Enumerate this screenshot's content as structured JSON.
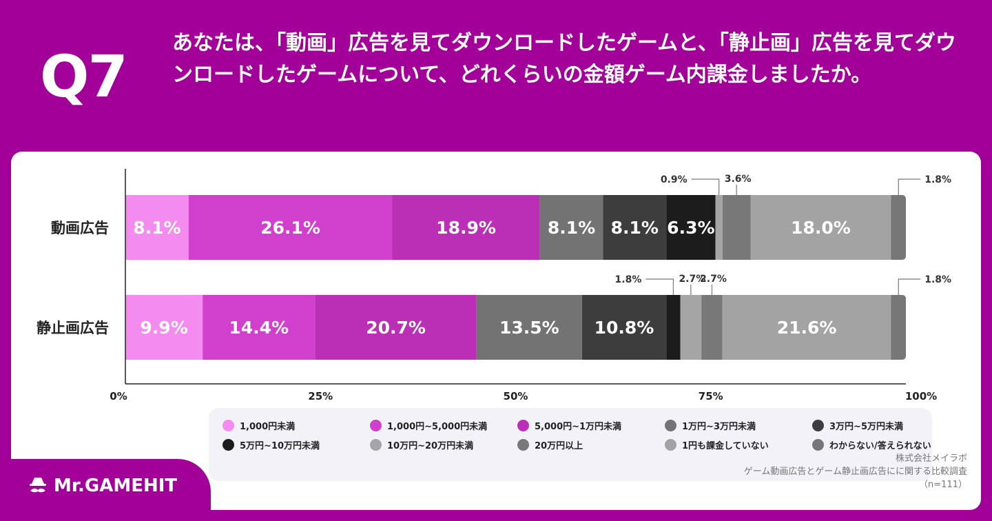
{
  "header": {
    "q_label": "Q7",
    "question": "あなたは、「動画」広告を見てダウンロードしたゲームと、「静止画」広告を見てダウンロードしたゲームについて、どれくらいの金額ゲーム内課金しましたか。"
  },
  "chart_data": {
    "type": "bar",
    "orientation": "horizontal-stacked-100",
    "categories": [
      "動画広告",
      "静止画広告"
    ],
    "x_ticks": [
      "0%",
      "25%",
      "50%",
      "75%",
      "100%"
    ],
    "xlim": [
      0,
      100
    ],
    "series": [
      {
        "name": "1,000円未満",
        "color": "#f48cf0",
        "values": [
          8.1,
          9.9
        ],
        "labels": [
          "8.1%",
          "9.9%"
        ]
      },
      {
        "name": "1,000円~5,000円未満",
        "color": "#d040cc",
        "values": [
          26.1,
          14.4
        ],
        "labels": [
          "26.1%",
          "14.4%"
        ]
      },
      {
        "name": "5,000円~1万円未満",
        "color": "#bb2fb6",
        "values": [
          18.9,
          20.7
        ],
        "labels": [
          "18.9%",
          "20.7%"
        ]
      },
      {
        "name": "1万円~3万円未満",
        "color": "#737373",
        "values": [
          8.1,
          13.5
        ],
        "labels": [
          "8.1%",
          "13.5%"
        ]
      },
      {
        "name": "3万円~5万円未満",
        "color": "#3d3d3d",
        "values": [
          8.1,
          10.8
        ],
        "labels": [
          "8.1%",
          "10.8%"
        ]
      },
      {
        "name": "5万円~10万円未満",
        "color": "#1c1c1c",
        "values": [
          6.3,
          1.8
        ],
        "labels": [
          "6.3%",
          "1.8%"
        ]
      },
      {
        "name": "10万円~20万円未満",
        "color": "#a5a5a5",
        "values": [
          0.9,
          2.7
        ],
        "labels": [
          "0.9%",
          "2.7%"
        ]
      },
      {
        "name": "20万円以上",
        "color": "#787878",
        "values": [
          3.6,
          2.7
        ],
        "labels": [
          "3.6%",
          "2.7%"
        ]
      },
      {
        "name": "1円も課金していない",
        "color": "#a3a3a3",
        "values": [
          18.0,
          21.6
        ],
        "labels": [
          "18.0%",
          "21.6%"
        ]
      },
      {
        "name": "わからない/答えられない",
        "color": "#777777",
        "values": [
          1.8,
          1.8
        ],
        "labels": [
          "1.8%",
          "1.8%"
        ]
      }
    ]
  },
  "source": {
    "line1": "株式会社メイラボ",
    "line2": "ゲーム動画広告とゲーム静止画広告にに関する比較調査",
    "line3": "（n=111）"
  },
  "brand": {
    "logo_text": "Mr.GAMEHIT",
    "primary_color": "#a3009a"
  }
}
